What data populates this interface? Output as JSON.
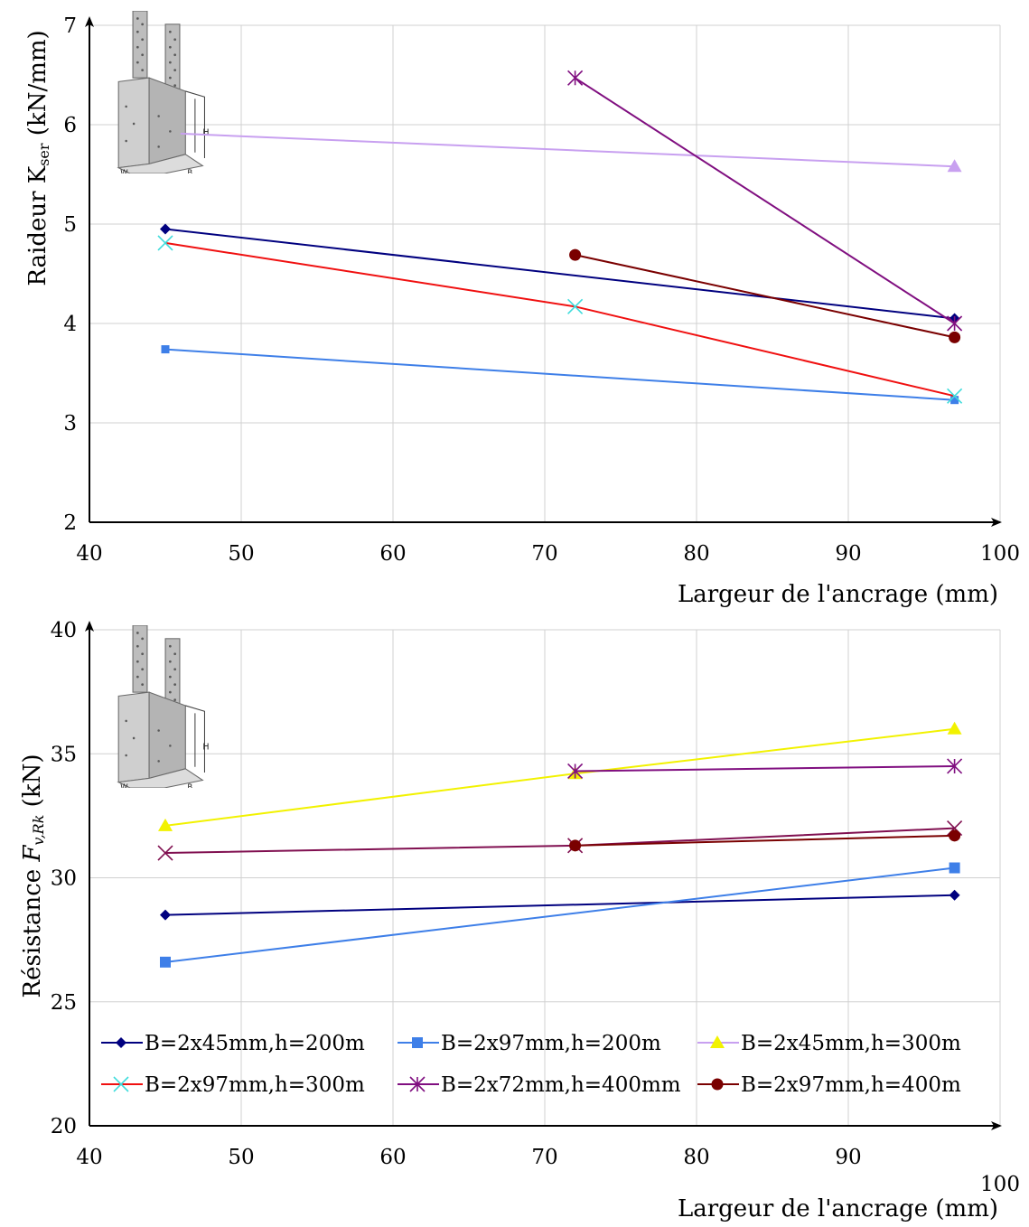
{
  "chart_data": [
    {
      "type": "line",
      "title": "",
      "xlabel": "Largeur de l'ancrage (mm)",
      "ylabel": "Raideur K",
      "ylabel_sub": "ser",
      "ylabel_unit": " (kN/mm)",
      "xlim": [
        40,
        100
      ],
      "ylim": [
        2,
        7
      ],
      "xticks": [
        40,
        50,
        60,
        70,
        80,
        90,
        100
      ],
      "yticks": [
        2,
        3,
        4,
        5,
        6,
        7
      ],
      "grid": true,
      "series": [
        {
          "name": "B=2x45mm,h=200m",
          "color": "#00007f",
          "marker": "diamond",
          "x": [
            45,
            97
          ],
          "y": [
            4.95,
            4.05
          ]
        },
        {
          "name": "B=2x97mm,h=200m",
          "color": "#3e7fe8",
          "marker": "square",
          "x": [
            45,
            97
          ],
          "y": [
            3.74,
            3.23
          ]
        },
        {
          "name": "B=2x45mm,h=300m",
          "color": "#c8a0f0",
          "marker": "triangle",
          "x": [
            46,
            97
          ],
          "y": [
            5.91,
            5.58
          ]
        },
        {
          "name": "B=2x97mm,h=300m",
          "color": "#f01010",
          "marker": "x",
          "marker_color": "#3fdcdc",
          "x": [
            45,
            72,
            97
          ],
          "y": [
            4.81,
            4.17,
            3.27
          ]
        },
        {
          "name": "B=2x72mm,h=400mm",
          "color": "#800f80",
          "marker": "star",
          "x": [
            72,
            97
          ],
          "y": [
            6.47,
            4.0
          ]
        },
        {
          "name": "B=2x97mm,h=400m",
          "color": "#7a0000",
          "marker": "circle",
          "x": [
            72,
            97
          ],
          "y": [
            4.69,
            3.86
          ]
        }
      ]
    },
    {
      "type": "line",
      "title": "",
      "xlabel": "Largeur de l'ancrage (mm)",
      "ylabel": "Résistance ",
      "ylabel_math": "F",
      "ylabel_sub": "v,Rk",
      "ylabel_unit": " (kN)",
      "xlim": [
        40,
        100
      ],
      "ylim": [
        20,
        40
      ],
      "xticks": [
        40,
        50,
        60,
        70,
        80,
        90,
        100
      ],
      "yticks": [
        20,
        25,
        30,
        35,
        40
      ],
      "grid": true,
      "legend": "lower",
      "series": [
        {
          "name": "B=2x45mm,h=200m",
          "color": "#00007f",
          "marker": "diamond",
          "x": [
            45,
            97
          ],
          "y": [
            28.5,
            29.3
          ]
        },
        {
          "name": "B=2x97mm,h=200m",
          "color": "#3e7fe8",
          "marker": "square",
          "x": [
            45,
            97
          ],
          "y": [
            26.6,
            30.4
          ]
        },
        {
          "name": "B=2x45mm,h=300m",
          "color": "#f2f200",
          "marker": "triangle",
          "x": [
            45,
            72,
            97
          ],
          "y": [
            32.1,
            34.2,
            36.0
          ]
        },
        {
          "name": "B=2x97mm,h=300m",
          "color": "#800f50",
          "marker": "x",
          "x": [
            45,
            72,
            97
          ],
          "y": [
            31.0,
            31.3,
            32.0
          ]
        },
        {
          "name": "B=2x72mm,h=400mm",
          "color": "#800f80",
          "marker": "star",
          "x": [
            72,
            97
          ],
          "y": [
            34.3,
            34.5
          ]
        },
        {
          "name": "B=2x97mm,h=400m",
          "color": "#7a0000",
          "marker": "circle",
          "x": [
            72,
            97
          ],
          "y": [
            31.3,
            31.7
          ]
        }
      ]
    }
  ],
  "legend_entries": [
    {
      "label": "B=2x45mm,h=200m",
      "color": "#00007f",
      "marker": "diamond"
    },
    {
      "label": "B=2x97mm,h=200m",
      "color": "#3e7fe8",
      "marker": "square"
    },
    {
      "label": "B=2x45mm,h=300m",
      "color": "#c8a0f0",
      "marker": "triangle",
      "marker_color": "#f2f200"
    },
    {
      "label": "B=2x97mm,h=300m",
      "color": "#f01010",
      "marker": "x",
      "marker_color": "#3fdcdc"
    },
    {
      "label": "B=2x72mm,h=400mm",
      "color": "#800f80",
      "marker": "star"
    },
    {
      "label": "B=2x97mm,h=400m",
      "color": "#7a0000",
      "marker": "circle"
    }
  ],
  "icons": [
    "bracket-illustration-icon"
  ]
}
